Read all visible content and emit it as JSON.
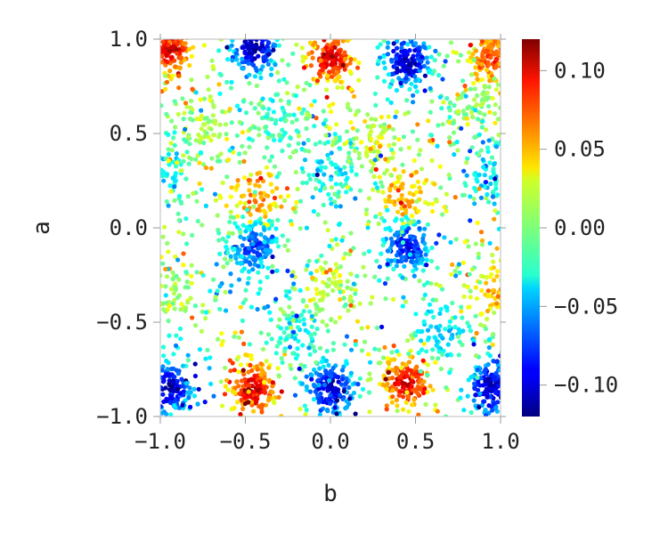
{
  "chart_data": {
    "type": "scatter",
    "title": "",
    "xlabel": "b",
    "ylabel": "a",
    "xlim": [
      -1.0,
      1.0
    ],
    "ylim": [
      -1.0,
      1.0
    ],
    "x_ticks": [
      "−1.0",
      "−0.5",
      "0.0",
      "0.5",
      "1.0"
    ],
    "y_ticks": [
      "−1.0",
      "−0.5",
      "0.0",
      "0.5",
      "1.0"
    ],
    "grid": false,
    "colormap": "jet",
    "color_range": [
      -0.12,
      0.12
    ],
    "colorbar_ticks": [
      "−0.10",
      "−0.05",
      "0.00",
      "0.05",
      "0.10"
    ],
    "colorbar_tick_values": [
      -0.1,
      -0.05,
      0.0,
      0.05,
      0.1
    ],
    "cluster_centers": [
      {
        "b": -0.95,
        "a": 0.95,
        "value": 0.1
      },
      {
        "b": -0.45,
        "a": 0.95,
        "value": -0.11
      },
      {
        "b": 0.0,
        "a": 0.9,
        "value": 0.1
      },
      {
        "b": 0.45,
        "a": 0.88,
        "value": -0.11
      },
      {
        "b": 0.95,
        "a": 0.9,
        "value": 0.08
      },
      {
        "b": -0.45,
        "a": 0.15,
        "value": 0.06
      },
      {
        "b": 0.45,
        "a": 0.15,
        "value": 0.05
      },
      {
        "b": -0.45,
        "a": -0.1,
        "value": -0.08
      },
      {
        "b": 0.45,
        "a": -0.1,
        "value": -0.09
      },
      {
        "b": -0.45,
        "a": -0.85,
        "value": 0.1
      },
      {
        "b": 0.0,
        "a": -0.85,
        "value": -0.11
      },
      {
        "b": 0.45,
        "a": -0.82,
        "value": 0.1
      },
      {
        "b": -0.95,
        "a": -0.85,
        "value": -0.11
      },
      {
        "b": 0.95,
        "a": -0.85,
        "value": -0.11
      },
      {
        "b": -0.95,
        "a": 0.3,
        "value": -0.03
      },
      {
        "b": 0.95,
        "a": 0.3,
        "value": -0.04
      },
      {
        "b": 0.0,
        "a": -0.3,
        "value": 0.02
      },
      {
        "b": -0.95,
        "a": -0.35,
        "value": 0.01
      },
      {
        "b": 0.95,
        "a": -0.35,
        "value": 0.04
      },
      {
        "b": 0.0,
        "a": 0.3,
        "value": -0.04
      },
      {
        "b": -0.2,
        "a": -0.55,
        "value": -0.03
      },
      {
        "b": 0.65,
        "a": -0.55,
        "value": -0.04
      },
      {
        "b": -0.3,
        "a": 0.6,
        "value": -0.02
      },
      {
        "b": 0.25,
        "a": 0.45,
        "value": 0.02
      },
      {
        "b": -0.75,
        "a": 0.55,
        "value": 0.01
      },
      {
        "b": 0.8,
        "a": 0.6,
        "value": 0.0
      }
    ]
  }
}
